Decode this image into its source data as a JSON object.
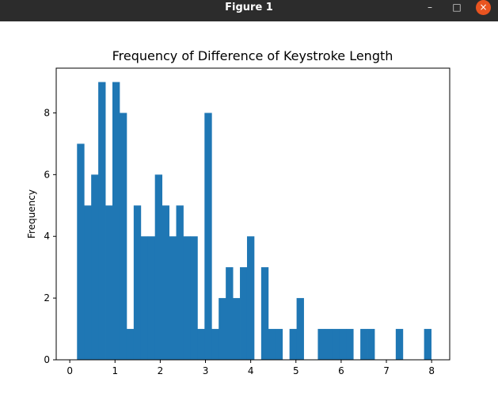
{
  "window": {
    "title": "Figure 1",
    "minimize_glyph": "–",
    "maximize_glyph": "□",
    "close_glyph": "×"
  },
  "colors": {
    "bar": "#1f77b4",
    "titlebar": "#2c2c2c",
    "close": "#e95420"
  },
  "chart_data": {
    "type": "bar",
    "title": "Frequency of Difference of Keystroke Length",
    "xlabel": "",
    "ylabel": "Frequency",
    "xlim": [
      -0.3,
      8.4
    ],
    "ylim": [
      0,
      9.45
    ],
    "xticks": [
      0,
      1,
      2,
      3,
      4,
      5,
      6,
      7,
      8
    ],
    "yticks": [
      0,
      2,
      4,
      6,
      8
    ],
    "grid": false,
    "legend": "none",
    "bin_start": 0.16,
    "bin_width": 0.1566,
    "values": [
      7,
      5,
      6,
      9,
      5,
      9,
      8,
      1,
      5,
      4,
      4,
      6,
      5,
      4,
      5,
      4,
      4,
      1,
      8,
      1,
      2,
      3,
      2,
      3,
      4,
      0,
      3,
      1,
      1,
      0,
      1,
      2,
      0,
      0,
      1,
      1,
      1,
      1,
      1,
      0,
      1,
      1,
      0,
      0,
      0,
      1,
      0,
      0,
      0,
      1
    ]
  }
}
